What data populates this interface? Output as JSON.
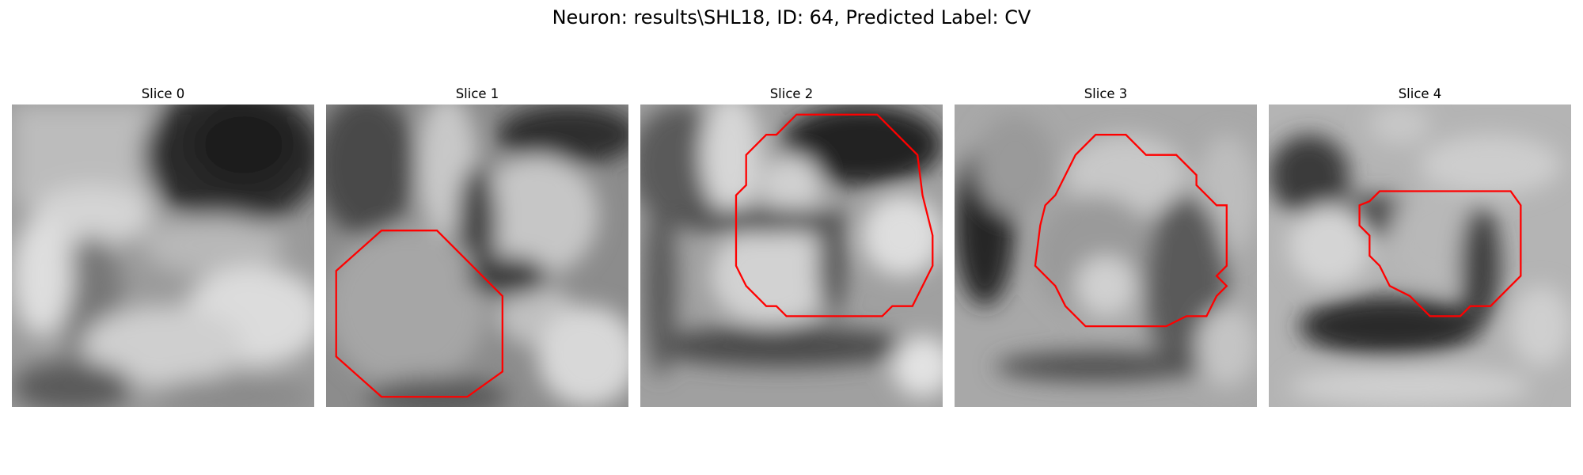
{
  "figure": {
    "title": "Neuron: results\\SHL18, ID: 64, Predicted Label: CV",
    "outline_color": "#ff0000"
  },
  "panels": [
    {
      "title": "Slice 0"
    },
    {
      "title": "Slice 1"
    },
    {
      "title": "Slice 2"
    },
    {
      "title": "Slice 3"
    },
    {
      "title": "Slice 4"
    }
  ]
}
